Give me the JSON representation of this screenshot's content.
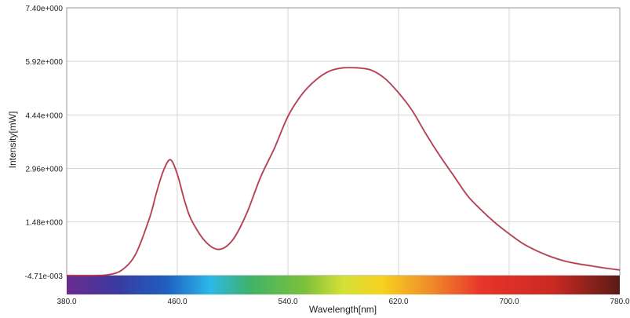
{
  "chart_data": {
    "type": "line",
    "title": "",
    "xlabel": "Wavelength[nm]",
    "ylabel": "Intensity[mW]",
    "xlim": [
      380,
      780
    ],
    "ylim": [
      -0.00471,
      7.4
    ],
    "x_ticks": [
      "380.0",
      "460.0",
      "540.0",
      "620.0",
      "700.0",
      "780.0"
    ],
    "y_ticks": [
      "-4.71e-003",
      "1.48e+000",
      "2.96e+000",
      "4.44e+000",
      "5.92e+000",
      "7.40e+000"
    ],
    "grid": true,
    "spectrum_bar": true,
    "colors": {
      "line": "#d62828",
      "noise": "#4a4a8a",
      "grid": "#d6d6d6"
    },
    "series": [
      {
        "x": [
          380,
          390,
          400,
          410,
          420,
          430,
          440,
          445,
          450,
          455,
          460,
          465,
          470,
          480,
          490,
          500,
          510,
          520,
          530,
          540,
          550,
          560,
          570,
          580,
          590,
          600,
          610,
          620,
          630,
          640,
          650,
          660,
          670,
          680,
          690,
          700,
          710,
          720,
          730,
          740,
          750,
          760,
          770,
          780
        ],
        "values": [
          0.0,
          0.0,
          0.0,
          0.02,
          0.15,
          0.6,
          1.6,
          2.3,
          2.9,
          3.2,
          2.8,
          2.1,
          1.55,
          0.95,
          0.72,
          0.98,
          1.7,
          2.7,
          3.5,
          4.4,
          5.0,
          5.4,
          5.65,
          5.74,
          5.74,
          5.68,
          5.45,
          5.05,
          4.55,
          3.9,
          3.3,
          2.75,
          2.2,
          1.8,
          1.45,
          1.15,
          0.88,
          0.68,
          0.52,
          0.4,
          0.32,
          0.26,
          0.2,
          0.15
        ]
      }
    ]
  }
}
